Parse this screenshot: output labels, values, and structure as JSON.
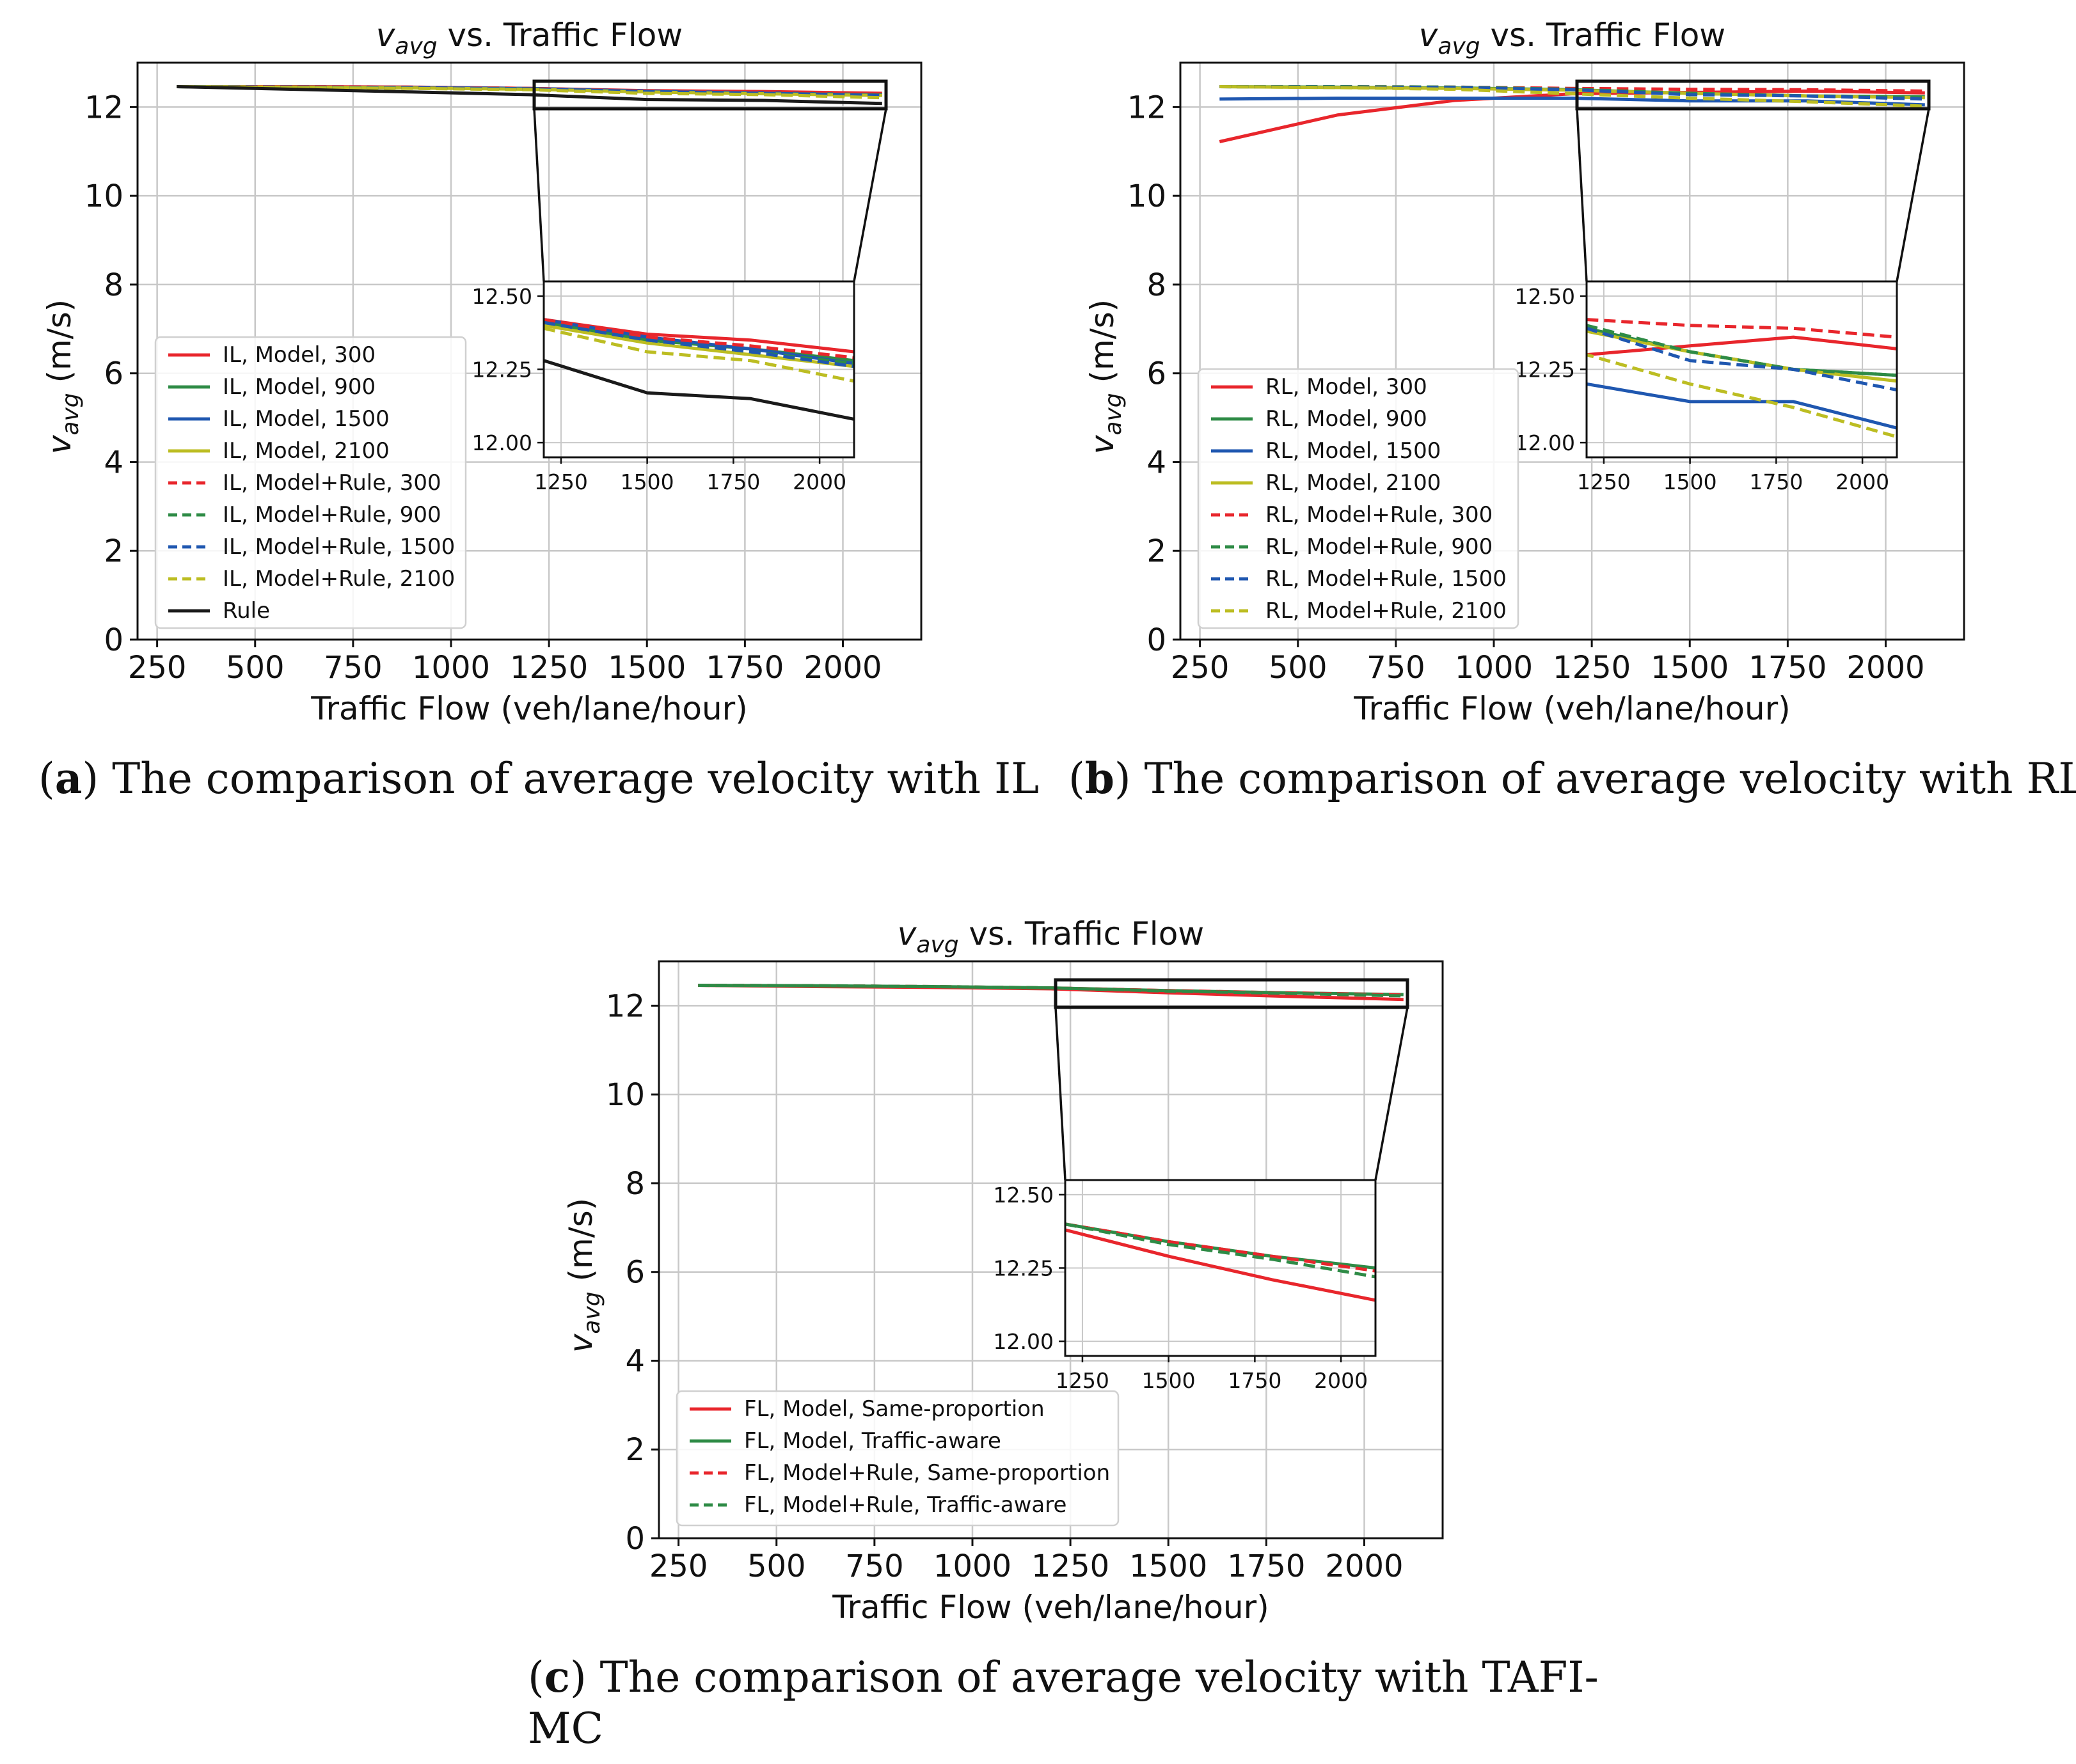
{
  "chart_data": [
    {
      "type": "line",
      "title": "v_avg vs. Traffic Flow",
      "title_main": "v",
      "title_sub": "avg",
      "title_rest": " vs. Traffic Flow",
      "xlabel": "Traffic Flow (veh/lane/hour)",
      "ylabel_main": "v",
      "ylabel_sub": "avg",
      "ylabel_rest": " (m/s)",
      "xlim": [
        200,
        2200
      ],
      "ylim": [
        0,
        13
      ],
      "xticks": [
        250,
        500,
        750,
        1000,
        1250,
        1500,
        1750,
        2000
      ],
      "yticks": [
        0,
        2,
        4,
        6,
        8,
        10,
        12
      ],
      "grid": true,
      "legend": "lower-left",
      "caption_label": "a",
      "caption": "The comparison of average velocity with IL",
      "caption_line2": "",
      "x": [
        300,
        600,
        900,
        1200,
        1500,
        1800,
        2100
      ],
      "inset": {
        "xlim": [
          1200,
          2100
        ],
        "ylim": [
          11.95,
          12.55
        ],
        "xticks": [
          1250,
          1500,
          1750,
          2000
        ],
        "yticks": [
          12.0,
          12.25,
          12.5
        ],
        "ytick_labels": [
          "12.00",
          "12.25",
          "12.50"
        ]
      },
      "series": [
        {
          "name": "IL, Model, 300",
          "color": "#e8262c",
          "dash": false,
          "values": [
            12.46,
            12.46,
            12.45,
            12.42,
            12.37,
            12.35,
            12.31
          ]
        },
        {
          "name": "IL, Model, 900",
          "color": "#2e8b46",
          "dash": false,
          "values": [
            12.46,
            12.45,
            12.44,
            12.41,
            12.35,
            12.32,
            12.28
          ]
        },
        {
          "name": "IL, Model, 1500",
          "color": "#1f57b0",
          "dash": false,
          "values": [
            12.46,
            12.45,
            12.44,
            12.42,
            12.36,
            12.32,
            12.27
          ]
        },
        {
          "name": "IL, Model, 2100",
          "color": "#bcbd22",
          "dash": false,
          "values": [
            12.46,
            12.45,
            12.43,
            12.4,
            12.34,
            12.3,
            12.26
          ]
        },
        {
          "name": "IL, Model+Rule, 300",
          "color": "#e8262c",
          "dash": true,
          "values": [
            12.46,
            12.46,
            12.45,
            12.42,
            12.36,
            12.33,
            12.29
          ]
        },
        {
          "name": "IL, Model+Rule, 900",
          "color": "#2e8b46",
          "dash": true,
          "values": [
            12.46,
            12.45,
            12.44,
            12.41,
            12.35,
            12.31,
            12.27
          ]
        },
        {
          "name": "IL, Model+Rule, 1500",
          "color": "#1f57b0",
          "dash": true,
          "values": [
            12.46,
            12.45,
            12.44,
            12.41,
            12.35,
            12.31,
            12.26
          ]
        },
        {
          "name": "IL, Model+Rule, 2100",
          "color": "#bcbd22",
          "dash": true,
          "values": [
            12.46,
            12.44,
            12.42,
            12.39,
            12.31,
            12.28,
            12.21
          ]
        },
        {
          "name": "Rule",
          "color": "#1a1a1a",
          "dash": false,
          "values": [
            12.46,
            12.4,
            12.34,
            12.28,
            12.17,
            12.15,
            12.08
          ]
        }
      ]
    },
    {
      "type": "line",
      "title": "v_avg vs. Traffic Flow",
      "title_main": "v",
      "title_sub": "avg",
      "title_rest": " vs. Traffic Flow",
      "xlabel": "Traffic Flow (veh/lane/hour)",
      "ylabel_main": "v",
      "ylabel_sub": "avg",
      "ylabel_rest": " (m/s)",
      "xlim": [
        200,
        2200
      ],
      "ylim": [
        0,
        13
      ],
      "xticks": [
        250,
        500,
        750,
        1000,
        1250,
        1500,
        1750,
        2000
      ],
      "yticks": [
        0,
        2,
        4,
        6,
        8,
        10,
        12
      ],
      "grid": true,
      "legend": "lower-left",
      "caption_label": "b",
      "caption": "The comparison of average velocity with RL",
      "caption_line2": "",
      "x": [
        300,
        600,
        900,
        1200,
        1500,
        1800,
        2100
      ],
      "inset": {
        "xlim": [
          1200,
          2100
        ],
        "ylim": [
          11.95,
          12.55
        ],
        "xticks": [
          1250,
          1500,
          1750,
          2000
        ],
        "yticks": [
          12.0,
          12.25,
          12.5
        ],
        "ytick_labels": [
          "12.00",
          "12.25",
          "12.50"
        ]
      },
      "series": [
        {
          "name": "RL, Model, 300",
          "color": "#e8262c",
          "dash": false,
          "values": [
            11.22,
            11.82,
            12.15,
            12.3,
            12.33,
            12.36,
            12.32
          ]
        },
        {
          "name": "RL, Model, 900",
          "color": "#2e8b46",
          "dash": false,
          "values": [
            12.46,
            12.45,
            12.43,
            12.39,
            12.31,
            12.25,
            12.23
          ]
        },
        {
          "name": "RL, Model, 1500",
          "color": "#1f57b0",
          "dash": false,
          "values": [
            12.18,
            12.2,
            12.2,
            12.2,
            12.14,
            12.14,
            12.05
          ]
        },
        {
          "name": "RL, Model, 2100",
          "color": "#bcbd22",
          "dash": false,
          "values": [
            12.46,
            12.44,
            12.42,
            12.38,
            12.31,
            12.25,
            12.21
          ]
        },
        {
          "name": "RL, Model+Rule, 300",
          "color": "#e8262c",
          "dash": true,
          "values": [
            12.46,
            12.46,
            12.45,
            12.42,
            12.4,
            12.39,
            12.36
          ]
        },
        {
          "name": "RL, Model+Rule, 900",
          "color": "#2e8b46",
          "dash": true,
          "values": [
            12.46,
            12.46,
            12.45,
            12.4,
            12.31,
            12.25,
            12.23
          ]
        },
        {
          "name": "RL, Model+Rule, 1500",
          "color": "#1f57b0",
          "dash": true,
          "values": [
            12.46,
            12.45,
            12.44,
            12.39,
            12.28,
            12.25,
            12.18
          ]
        },
        {
          "name": "RL, Model+Rule, 2100",
          "color": "#bcbd22",
          "dash": true,
          "values": [
            12.46,
            12.44,
            12.4,
            12.3,
            12.2,
            12.12,
            12.02
          ]
        }
      ]
    },
    {
      "type": "line",
      "title": "v_avg vs. Traffic Flow",
      "title_main": "v",
      "title_sub": "avg",
      "title_rest": " vs. Traffic Flow",
      "xlabel": "Traffic Flow (veh/lane/hour)",
      "ylabel_main": "v",
      "ylabel_sub": "avg",
      "ylabel_rest": " (m/s)",
      "xlim": [
        200,
        2200
      ],
      "ylim": [
        0,
        13
      ],
      "xticks": [
        250,
        500,
        750,
        1000,
        1250,
        1500,
        1750,
        2000
      ],
      "yticks": [
        0,
        2,
        4,
        6,
        8,
        10,
        12
      ],
      "grid": true,
      "legend": "lower-left",
      "caption_label": "c",
      "caption": "The comparison of average velocity with TAFI-",
      "caption_line2": "MC",
      "x": [
        300,
        600,
        900,
        1200,
        1500,
        1800,
        2100
      ],
      "inset": {
        "xlim": [
          1200,
          2100
        ],
        "ylim": [
          11.95,
          12.55
        ],
        "xticks": [
          1250,
          1500,
          1750,
          2000
        ],
        "yticks": [
          12.0,
          12.25,
          12.5
        ],
        "ytick_labels": [
          "12.00",
          "12.25",
          "12.50"
        ]
      },
      "series": [
        {
          "name": "FL, Model, Same-proportion",
          "color": "#e8262c",
          "dash": false,
          "values": [
            12.46,
            12.43,
            12.41,
            12.38,
            12.29,
            12.21,
            12.14
          ]
        },
        {
          "name": "FL, Model, Traffic-aware",
          "color": "#2e8b46",
          "dash": false,
          "values": [
            12.46,
            12.45,
            12.43,
            12.4,
            12.34,
            12.29,
            12.25
          ]
        },
        {
          "name": "FL, Model+Rule, Same-proportion",
          "color": "#e8262c",
          "dash": true,
          "values": [
            12.46,
            12.45,
            12.43,
            12.4,
            12.34,
            12.29,
            12.24
          ]
        },
        {
          "name": "FL, Model+Rule, Traffic-aware",
          "color": "#2e8b46",
          "dash": true,
          "values": [
            12.46,
            12.45,
            12.43,
            12.4,
            12.33,
            12.28,
            12.22
          ]
        }
      ]
    }
  ]
}
